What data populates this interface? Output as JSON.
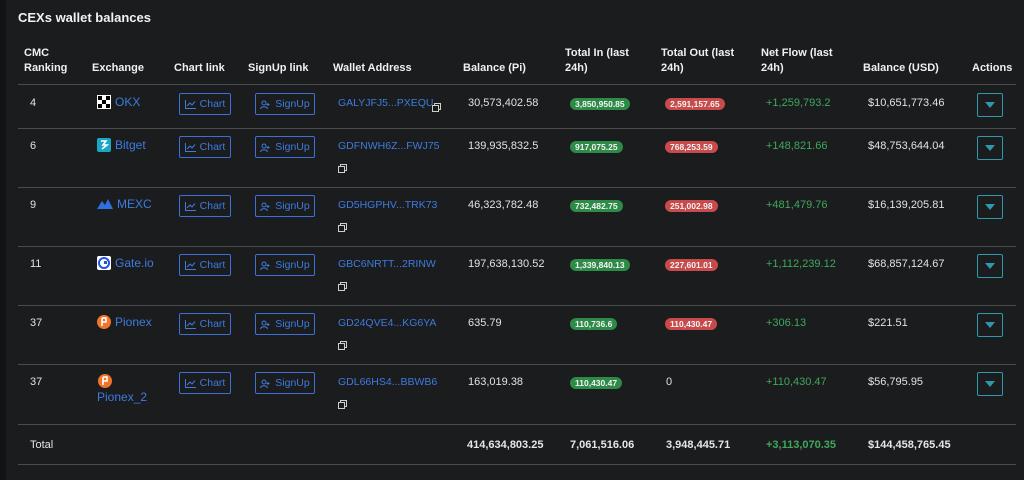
{
  "page": {
    "title": "CEXs wallet balances"
  },
  "columns": {
    "ranking": "CMC Ranking",
    "exchange": "Exchange",
    "chart_link": "Chart link",
    "signup_link": "SignUp link",
    "wallet_address": "Wallet Address",
    "balance_pi": "Balance (Pi)",
    "total_in": "Total In (last 24h)",
    "total_out": "Total Out (last 24h)",
    "net_flow": "Net Flow (last 24h)",
    "balance_usd": "Balance (USD)",
    "actions": "Actions"
  },
  "buttons": {
    "chart": "Chart",
    "signup": "SignUp"
  },
  "rows": [
    {
      "rank": "4",
      "exchange": "OKX",
      "logo_icon": "okx-logo-icon",
      "address": "GALYJFJ5...PXEQU",
      "balance_pi": "30,573,402.58",
      "total_in": "3,850,950.85",
      "total_out": "2,591,157.65",
      "net_flow": "+1,259,793.2",
      "balance_usd": "$10,651,773.46"
    },
    {
      "rank": "6",
      "exchange": "Bitget",
      "logo_icon": "bitget-logo-icon",
      "address": "GDFNWH6Z...FWJ75",
      "balance_pi": "139,935,832.5",
      "total_in": "917,075.25",
      "total_out": "768,253.59",
      "net_flow": "+148,821.66",
      "balance_usd": "$48,753,644.04"
    },
    {
      "rank": "9",
      "exchange": "MEXC",
      "logo_icon": "mexc-logo-icon",
      "address": "GD5HGPHV...TRK73",
      "balance_pi": "46,323,782.48",
      "total_in": "732,482.75",
      "total_out": "251,002.98",
      "net_flow": "+481,479.76",
      "balance_usd": "$16,139,205.81"
    },
    {
      "rank": "11",
      "exchange": "Gate.io",
      "logo_icon": "gateio-logo-icon",
      "address": "GBC6NRTT...2RINW",
      "balance_pi": "197,638,130.52",
      "total_in": "1,339,840.13",
      "total_out": "227,601.01",
      "net_flow": "+1,112,239.12",
      "balance_usd": "$68,857,124.67"
    },
    {
      "rank": "37",
      "exchange": "Pionex",
      "logo_icon": "pionex-logo-icon",
      "address": "GD24QVE4...KG6YA",
      "balance_pi": "635.79",
      "total_in": "110,736.6",
      "total_out": "110,430.47",
      "net_flow": "+306.13",
      "balance_usd": "$221.51"
    },
    {
      "rank": "37",
      "exchange": "Pionex_2",
      "logo_icon": "pionex-logo-icon",
      "address": "GDL66HS4...BBWB6",
      "balance_pi": "163,019.38",
      "total_in": "110,430.47",
      "total_out": "0",
      "net_flow": "+110,430.47",
      "balance_usd": "$56,795.95"
    }
  ],
  "totals": {
    "label": "Total",
    "balance_pi": "414,634,803.25",
    "total_in": "7,061,516.06",
    "total_out": "3,948,445.71",
    "net_flow": "+3,113,070.35",
    "balance_usd": "$144,458,765.45"
  },
  "colors": {
    "link_blue": "#3d7be0",
    "in_green": "#2e8b47",
    "out_red": "#c84a4a",
    "flow_green": "#3fa85c",
    "action_teal": "#2f98ad"
  }
}
